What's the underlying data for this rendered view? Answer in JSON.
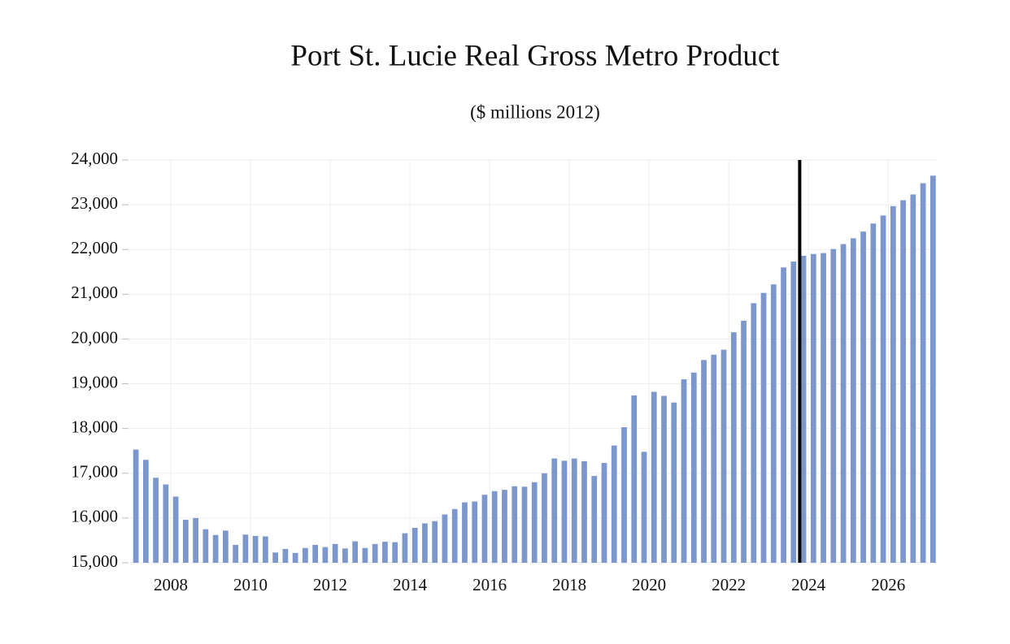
{
  "chart_data": {
    "type": "bar",
    "title": "Port St. Lucie Real Gross Metro Product",
    "subtitle": "($ millions 2012)",
    "x": [
      2007.125,
      2007.375,
      2007.625,
      2007.875,
      2008.125,
      2008.375,
      2008.625,
      2008.875,
      2009.125,
      2009.375,
      2009.625,
      2009.875,
      2010.125,
      2010.375,
      2010.625,
      2010.875,
      2011.125,
      2011.375,
      2011.625,
      2011.875,
      2012.125,
      2012.375,
      2012.625,
      2012.875,
      2013.125,
      2013.375,
      2013.625,
      2013.875,
      2014.125,
      2014.375,
      2014.625,
      2014.875,
      2015.125,
      2015.375,
      2015.625,
      2015.875,
      2016.125,
      2016.375,
      2016.625,
      2016.875,
      2017.125,
      2017.375,
      2017.625,
      2017.875,
      2018.125,
      2018.375,
      2018.625,
      2018.875,
      2019.125,
      2019.375,
      2019.625,
      2019.875,
      2020.125,
      2020.375,
      2020.625,
      2020.875,
      2021.125,
      2021.375,
      2021.625,
      2021.875,
      2022.125,
      2022.375,
      2022.625,
      2022.875,
      2023.125,
      2023.375,
      2023.625,
      2023.875,
      2024.125,
      2024.375,
      2024.625,
      2024.875,
      2025.125,
      2025.375,
      2025.625,
      2025.875,
      2026.125,
      2026.375,
      2026.625,
      2026.875,
      2027.125
    ],
    "values": [
      17530,
      17300,
      16900,
      16750,
      16480,
      15960,
      16000,
      15750,
      15620,
      15720,
      15400,
      15630,
      15600,
      15590,
      15230,
      15310,
      15220,
      15330,
      15400,
      15350,
      15420,
      15320,
      15480,
      15330,
      15420,
      15470,
      15460,
      15660,
      15780,
      15880,
      15930,
      16080,
      16200,
      16350,
      16370,
      16520,
      16600,
      16630,
      16710,
      16700,
      16800,
      17000,
      17330,
      17280,
      17330,
      17270,
      16940,
      17230,
      17620,
      18030,
      18740,
      17480,
      18820,
      18730,
      18580,
      19100,
      19250,
      19530,
      19650,
      19760,
      20150,
      20410,
      20800,
      21030,
      21220,
      21600,
      21730,
      21860,
      21900,
      21920,
      22010,
      22120,
      22250,
      22400,
      22580,
      22760,
      22970,
      23100,
      23230,
      23480,
      23650
    ],
    "color": "#7b97cc",
    "xlim": [
      2006.98,
      2027.22
    ],
    "xticks": [
      2008,
      2010,
      2012,
      2014,
      2016,
      2018,
      2020,
      2022,
      2024,
      2026
    ],
    "ylim": [
      15000,
      24000
    ],
    "yticks": [
      {
        "value": 15000,
        "label": "15,000"
      },
      {
        "value": 16000,
        "label": "16,000"
      },
      {
        "value": 17000,
        "label": "17,000"
      },
      {
        "value": 18000,
        "label": "18,000"
      },
      {
        "value": 19000,
        "label": "19,000"
      },
      {
        "value": 20000,
        "label": "20,000"
      },
      {
        "value": 21000,
        "label": "21,000"
      },
      {
        "value": 22000,
        "label": "22,000"
      },
      {
        "value": 23000,
        "label": "23,000"
      },
      {
        "value": 24000,
        "label": "24,000"
      }
    ],
    "grid": true,
    "vline": 2023.78
  }
}
